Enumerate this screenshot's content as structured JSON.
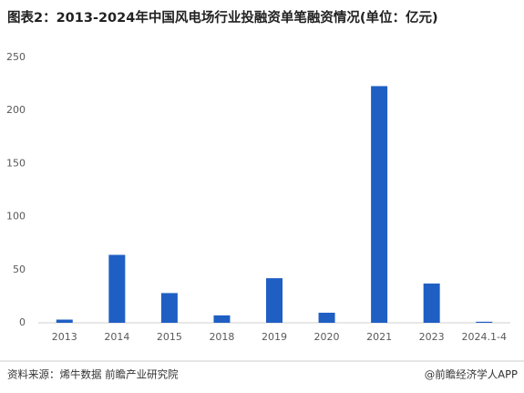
{
  "chart_data": {
    "type": "bar",
    "title": "图表2：2013-2024年中国风电场行业投融资单笔融资情况(单位：亿元)",
    "categories": [
      "2013",
      "2014",
      "2015",
      "2018",
      "2019",
      "2020",
      "2021",
      "2023",
      "2024.1-4"
    ],
    "values": [
      3,
      64,
      28,
      7,
      42,
      9.5,
      223,
      37,
      1
    ],
    "color": "#1f5fc4",
    "ylim": [
      0,
      250
    ],
    "yticks": [
      0,
      50,
      100,
      150,
      200,
      250
    ],
    "grid": false,
    "source": "资料来源：烯牛数据 前瞻产业研究院",
    "credit": "@前瞻经济学人APP"
  }
}
